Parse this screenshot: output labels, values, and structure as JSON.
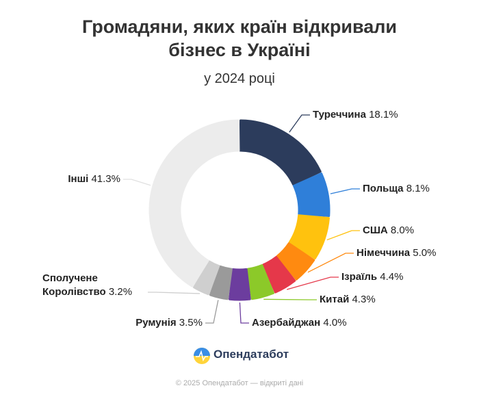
{
  "chart_data": {
    "type": "donut",
    "title": "Громадяни, яких країн відкривали бізнес в Україні",
    "subtitle": "у 2024 році",
    "categories": [
      "Туреччина",
      "Польща",
      "США",
      "Німеччина",
      "Ізраїль",
      "Китай",
      "Азербайджан",
      "Румунія",
      "Сполучене Королівство",
      "Інші"
    ],
    "values": [
      18.1,
      8.1,
      8.0,
      5.0,
      4.4,
      4.3,
      4.0,
      3.5,
      3.2,
      41.3
    ],
    "value_labels": [
      "18.1%",
      "8.1%",
      "8.0%",
      "5.0%",
      "4.4%",
      "4.3%",
      "4.0%",
      "3.5%",
      "3.2%",
      "41.3%"
    ],
    "colors": [
      "#2c3c5c",
      "#2f7fd9",
      "#ffc20e",
      "#ff8a10",
      "#e5384a",
      "#8cc929",
      "#6c3d9e",
      "#9a9a9a",
      "#cfcfcf",
      "#ececec"
    ],
    "brand": "Опендатабот",
    "credit": "© 2025 Опендатабот — відкриті дані"
  }
}
